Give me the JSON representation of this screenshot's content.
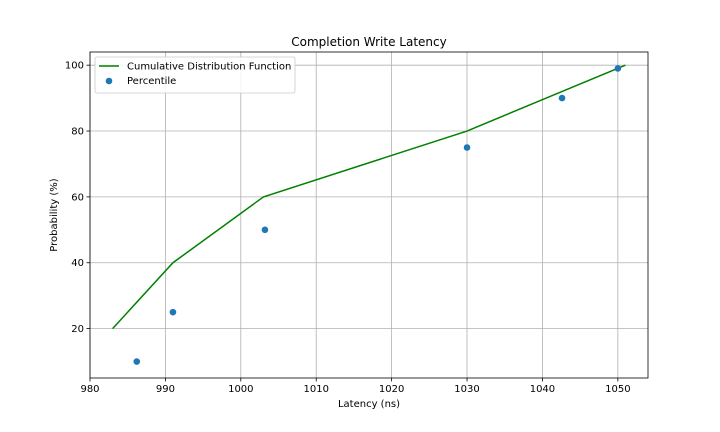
{
  "chart_data": {
    "type": "line",
    "title": "Completion Write Latency",
    "xlabel": "Latency (ns)",
    "ylabel": "Probability (%)",
    "xlim": [
      980,
      1054
    ],
    "ylim": [
      5,
      104
    ],
    "xticks": [
      980,
      990,
      1000,
      1010,
      1020,
      1030,
      1040,
      1050
    ],
    "yticks": [
      20,
      40,
      60,
      80,
      100
    ],
    "grid": true,
    "legend_position": "top-left",
    "series": [
      {
        "name": "Cumulative Distribution Function",
        "kind": "line",
        "color": "#008000",
        "x": [
          983,
          991,
          1003,
          1030,
          1051
        ],
        "y": [
          20,
          40,
          60,
          80,
          100
        ]
      },
      {
        "name": "Percentile",
        "kind": "scatter",
        "color": "#1f77b4",
        "x": [
          986.2,
          991,
          1003.2,
          1030,
          1042.6,
          1050
        ],
        "y": [
          10,
          25,
          50,
          75,
          90,
          99
        ]
      }
    ]
  }
}
